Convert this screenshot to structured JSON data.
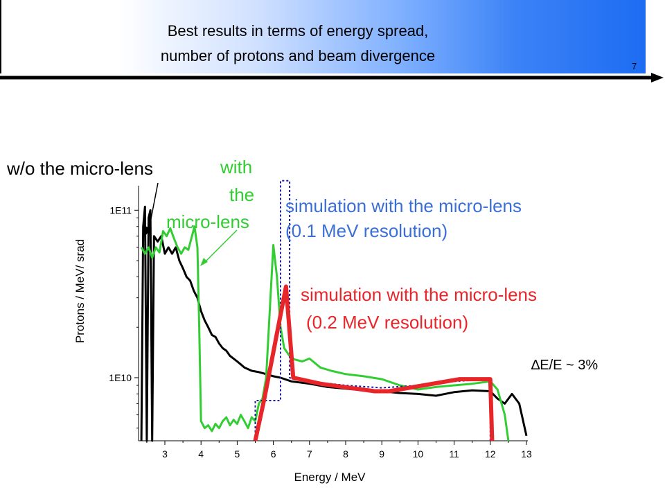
{
  "slide": {
    "title_line1": "Best results in terms of energy spread,",
    "title_line2": "number of protons and beam divergence",
    "slide_number": "7",
    "colors": {
      "header_gradient_end": "#1d6cf2"
    }
  },
  "annotations": {
    "wo_lens": "w/o the micro-lens",
    "with_lens_1": "with",
    "with_lens_2": "the",
    "with_lens_3": "micro-lens",
    "sim01_line1": "simulation with the micro-lens",
    "sim01_line2": "(0.1 MeV resolution)",
    "sim02_line1": "simulation with the micro-lens",
    "sim02_line2": "(0.2 MeV resolution)",
    "spread": "∆E/E  ~ 3%",
    "colors": {
      "green": "#32cd32",
      "blue": "#3b6fd6",
      "red": "#e8262a"
    }
  },
  "chart_data": {
    "type": "line",
    "xlabel": "Energy / MeV",
    "ylabel": "Protons / MeV/ srad",
    "x_ticks": [
      3,
      4,
      5,
      6,
      7,
      8,
      9,
      10,
      11,
      12,
      13
    ],
    "y_tick_labels": [
      "1E11",
      "1E10"
    ],
    "y_ticks": [
      100000000000.0,
      10000000000.0
    ],
    "xlim": [
      2.2,
      13
    ],
    "ylim_log": [
      4200000000.0,
      140000000000.0
    ],
    "y_scale": "log",
    "series": [
      {
        "color": "#000000",
        "style": "solid",
        "points": [
          [
            2.35,
            4000000000.0
          ],
          [
            2.4,
            80000000000.0
          ],
          [
            2.45,
            105000000000.0
          ],
          [
            2.5,
            4000000000.0
          ],
          [
            2.55,
            90000000000.0
          ],
          [
            2.6,
            100000000000.0
          ],
          [
            2.65,
            4000000000.0
          ],
          [
            2.7,
            70000000000.0
          ],
          [
            2.8,
            65000000000.0
          ],
          [
            2.9,
            70000000000.0
          ],
          [
            3.0,
            55000000000.0
          ],
          [
            3.1,
            60000000000.0
          ],
          [
            3.2,
            55000000000.0
          ],
          [
            3.3,
            60000000000.0
          ],
          [
            3.4,
            50000000000.0
          ],
          [
            3.5,
            45000000000.0
          ],
          [
            3.6,
            40000000000.0
          ],
          [
            3.7,
            38000000000.0
          ],
          [
            3.8,
            33000000000.0
          ],
          [
            3.9,
            30000000000.0
          ],
          [
            4.0,
            25000000000.0
          ],
          [
            4.1,
            22000000000.0
          ],
          [
            4.2,
            20000000000.0
          ],
          [
            4.3,
            18000000000.0
          ],
          [
            4.4,
            17500000000.0
          ],
          [
            4.5,
            16000000000.0
          ],
          [
            4.6,
            15000000000.0
          ],
          [
            4.7,
            14500000000.0
          ],
          [
            4.8,
            13500000000.0
          ],
          [
            4.9,
            13000000000.0
          ],
          [
            5.0,
            12500000000.0
          ],
          [
            5.1,
            12000000000.0
          ],
          [
            5.2,
            11500000000.0
          ],
          [
            5.4,
            11000000000.0
          ],
          [
            5.6,
            10800000000.0
          ],
          [
            5.8,
            10500000000.0
          ],
          [
            6.0,
            10200000000.0
          ],
          [
            6.2,
            10000000000.0
          ],
          [
            6.5,
            9500000000.0
          ],
          [
            7.0,
            9200000000.0
          ],
          [
            7.5,
            8800000000.0
          ],
          [
            8.0,
            8600000000.0
          ],
          [
            8.5,
            8400000000.0
          ],
          [
            9.0,
            8300000000.0
          ],
          [
            9.5,
            8100000000.0
          ],
          [
            10.0,
            8000000000.0
          ],
          [
            10.5,
            7800000000.0
          ],
          [
            11.0,
            8200000000.0
          ],
          [
            11.5,
            8400000000.0
          ],
          [
            12.0,
            8300000000.0
          ],
          [
            12.2,
            7500000000.0
          ],
          [
            12.4,
            7000000000.0
          ],
          [
            12.6,
            8000000000.0
          ],
          [
            12.8,
            7000000000.0
          ],
          [
            13.0,
            4500000000.0
          ]
        ]
      },
      {
        "color": "#32cd32",
        "style": "solid",
        "points": [
          [
            2.35,
            60000000000.0
          ],
          [
            2.45,
            55000000000.0
          ],
          [
            2.55,
            60000000000.0
          ],
          [
            2.65,
            52000000000.0
          ],
          [
            2.75,
            60000000000.0
          ],
          [
            2.85,
            56000000000.0
          ],
          [
            2.95,
            75000000000.0
          ],
          [
            3.05,
            70000000000.0
          ],
          [
            3.15,
            78000000000.0
          ],
          [
            3.25,
            68000000000.0
          ],
          [
            3.35,
            60000000000.0
          ],
          [
            3.45,
            55000000000.0
          ],
          [
            3.55,
            60000000000.0
          ],
          [
            3.65,
            58000000000.0
          ],
          [
            3.75,
            70000000000.0
          ],
          [
            3.82,
            80000000000.0
          ],
          [
            3.9,
            60000000000.0
          ],
          [
            3.95,
            20000000000.0
          ],
          [
            4.0,
            5500000000.0
          ],
          [
            4.1,
            5000000000.0
          ],
          [
            4.2,
            5200000000.0
          ],
          [
            4.3,
            4800000000.0
          ],
          [
            4.4,
            5300000000.0
          ],
          [
            4.5,
            5000000000.0
          ],
          [
            4.6,
            5500000000.0
          ],
          [
            4.7,
            5800000000.0
          ],
          [
            4.8,
            5200000000.0
          ],
          [
            4.9,
            5600000000.0
          ],
          [
            5.0,
            5300000000.0
          ],
          [
            5.1,
            6000000000.0
          ],
          [
            5.2,
            5500000000.0
          ],
          [
            5.3,
            5000000000.0
          ],
          [
            5.4,
            5800000000.0
          ],
          [
            5.5,
            5500000000.0
          ],
          [
            5.6,
            7000000000.0
          ],
          [
            5.7,
            7500000000.0
          ],
          [
            5.8,
            10000000000.0
          ],
          [
            5.9,
            25000000000.0
          ],
          [
            6.0,
            62000000000.0
          ],
          [
            6.1,
            40000000000.0
          ],
          [
            6.2,
            20000000000.0
          ],
          [
            6.3,
            15000000000.0
          ],
          [
            6.5,
            13000000000.0
          ],
          [
            6.8,
            12500000000.0
          ],
          [
            7.0,
            13000000000.0
          ],
          [
            7.3,
            11500000000.0
          ],
          [
            7.6,
            11000000000.0
          ],
          [
            8.0,
            10500000000.0
          ],
          [
            8.5,
            10200000000.0
          ],
          [
            9.0,
            9800000000.0
          ],
          [
            9.5,
            9000000000.0
          ],
          [
            10.0,
            8500000000.0
          ],
          [
            10.5,
            8800000000.0
          ],
          [
            11.0,
            9000000000.0
          ],
          [
            11.5,
            9200000000.0
          ],
          [
            12.0,
            9500000000.0
          ],
          [
            12.2,
            8500000000.0
          ],
          [
            12.4,
            6000000000.0
          ],
          [
            12.5,
            4200000000.0
          ]
        ]
      },
      {
        "color": "#1a1aa0",
        "style": "dotted",
        "points": [
          [
            5.5,
            4200000000.0
          ],
          [
            5.5,
            7300000000.0
          ],
          [
            6.2,
            7300000000.0
          ],
          [
            6.2,
            150000000000.0
          ],
          [
            6.45,
            150000000000.0
          ],
          [
            6.45,
            10000000000.0
          ],
          [
            7.0,
            9500000000.0
          ],
          [
            8.0,
            9000000000.0
          ],
          [
            9.0,
            8700000000.0
          ],
          [
            10.0,
            9000000000.0
          ],
          [
            11.0,
            9500000000.0
          ],
          [
            12.0,
            9800000000.0
          ],
          [
            12.0,
            4200000000.0
          ]
        ]
      },
      {
        "color": "#e8262a",
        "style": "solid-thick",
        "points": [
          [
            5.5,
            4200000000.0
          ],
          [
            5.75,
            7500000000.0
          ],
          [
            6.35,
            35000000000.0
          ],
          [
            6.55,
            10000000000.0
          ],
          [
            7.3,
            9200000000.0
          ],
          [
            8.8,
            8300000000.0
          ],
          [
            9.2,
            8300000000.0
          ],
          [
            11.15,
            9800000000.0
          ],
          [
            12.0,
            9800000000.0
          ],
          [
            12.05,
            4200000000.0
          ]
        ]
      }
    ]
  }
}
